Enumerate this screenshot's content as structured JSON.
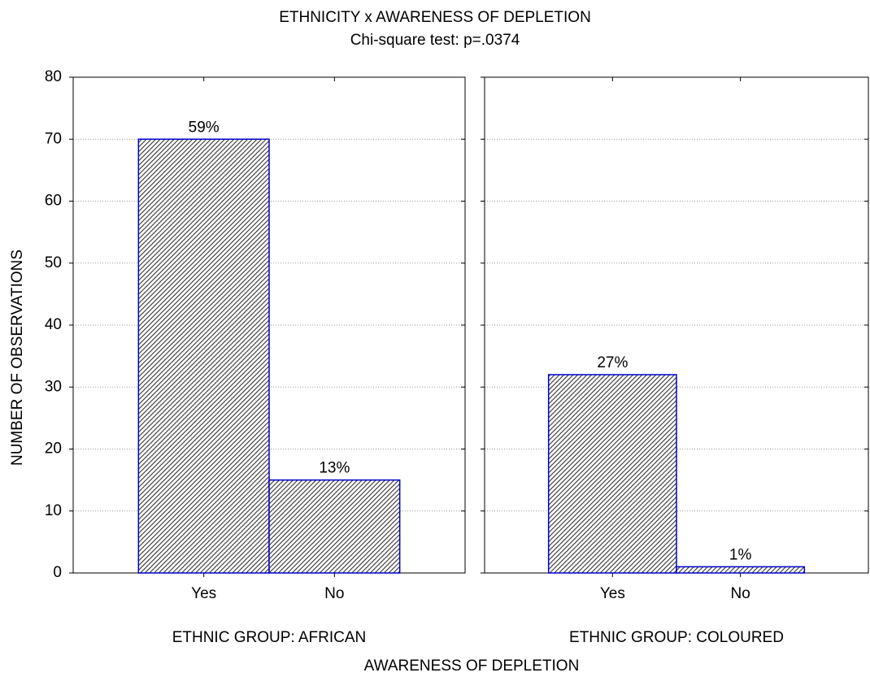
{
  "chart_data": {
    "type": "bar",
    "title": "ETHNICITY x AWARENESS OF DEPLETION",
    "subtitle": "Chi-square test: p=.0374",
    "y_label": "NUMBER OF OBSERVATIONS",
    "x_label": "AWARENESS OF DEPLETION",
    "ylim": [
      0,
      80
    ],
    "yticks": [
      0,
      10,
      20,
      30,
      40,
      50,
      60,
      70,
      80
    ],
    "grid": true,
    "color": "#0000cc",
    "panels": [
      {
        "label": "ETHNIC GROUP: AFRICAN",
        "categories": [
          "Yes",
          "No"
        ],
        "values": [
          70,
          15
        ],
        "percent_labels": [
          "59%",
          "13%"
        ]
      },
      {
        "label": "ETHNIC GROUP: COLOURED",
        "categories": [
          "Yes",
          "No"
        ],
        "values": [
          32,
          1
        ],
        "percent_labels": [
          "27%",
          "1%"
        ]
      }
    ]
  }
}
